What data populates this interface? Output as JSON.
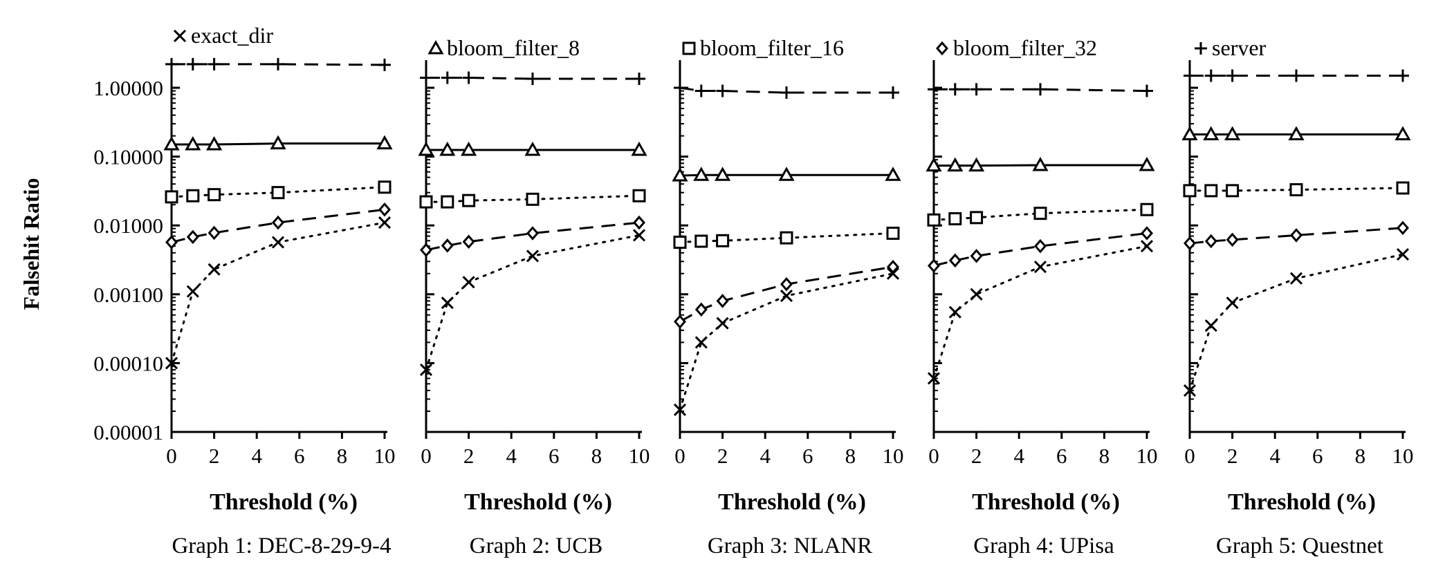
{
  "chart_data": {
    "type": "line",
    "ylabel": "Falsehit Ratio",
    "yscale": "log",
    "ylim": [
      1e-05,
      1.0
    ],
    "yticks": [
      {
        "value": 1.0,
        "label": "1.00000"
      },
      {
        "value": 0.1,
        "label": "0.10000"
      },
      {
        "value": 0.01,
        "label": "0.01000"
      },
      {
        "value": 0.001,
        "label": "0.00100"
      },
      {
        "value": 0.0001,
        "label": "0.00010"
      },
      {
        "value": 1e-05,
        "label": "0.00001"
      }
    ],
    "xlim": [
      0,
      10
    ],
    "xticks": [
      0,
      2,
      4,
      6,
      8,
      10
    ],
    "xlabel": "Threshold (%)",
    "x": [
      0,
      1,
      2,
      5,
      10
    ],
    "legend": [
      {
        "name": "exact_dir",
        "marker": "x",
        "dash": "dotted"
      },
      {
        "name": "bloom_filter_8",
        "marker": "triangle",
        "dash": "solid"
      },
      {
        "name": "bloom_filter_16",
        "marker": "square",
        "dash": "dotted"
      },
      {
        "name": "bloom_filter_32",
        "marker": "diamond",
        "dash": "dashed"
      },
      {
        "name": "server",
        "marker": "plus",
        "dash": "dashed"
      }
    ],
    "panels": [
      {
        "caption": "Graph 1: DEC-8-29-9-4",
        "series": [
          {
            "name": "exact_dir",
            "values": [
              0.0001,
              0.0011,
              0.0023,
              0.0057,
              0.011
            ]
          },
          {
            "name": "bloom_filter_8",
            "values": [
              0.15,
              0.15,
              0.15,
              0.155,
              0.155
            ]
          },
          {
            "name": "bloom_filter_16",
            "values": [
              0.026,
              0.027,
              0.028,
              0.03,
              0.036
            ]
          },
          {
            "name": "bloom_filter_32",
            "values": [
              0.0057,
              0.0068,
              0.0078,
              0.011,
              0.017
            ]
          },
          {
            "name": "server",
            "values": [
              2.2,
              2.2,
              2.2,
              2.2,
              2.15
            ]
          }
        ]
      },
      {
        "caption": "Graph 2: UCB",
        "series": [
          {
            "name": "exact_dir",
            "values": [
              8e-05,
              0.00075,
              0.0015,
              0.0036,
              0.0072
            ]
          },
          {
            "name": "bloom_filter_8",
            "values": [
              0.125,
              0.125,
              0.125,
              0.125,
              0.125
            ]
          },
          {
            "name": "bloom_filter_16",
            "values": [
              0.022,
              0.022,
              0.023,
              0.024,
              0.027
            ]
          },
          {
            "name": "bloom_filter_32",
            "values": [
              0.0044,
              0.0051,
              0.0058,
              0.0077,
              0.011
            ]
          },
          {
            "name": "server",
            "values": [
              1.4,
              1.4,
              1.4,
              1.35,
              1.35
            ]
          }
        ]
      },
      {
        "caption": "Graph 3: NLANR",
        "series": [
          {
            "name": "exact_dir",
            "values": [
              2.1e-05,
              0.0002,
              0.00038,
              0.00095,
              0.002
            ]
          },
          {
            "name": "bloom_filter_8",
            "values": [
              0.053,
              0.054,
              0.054,
              0.054,
              0.054
            ]
          },
          {
            "name": "bloom_filter_16",
            "values": [
              0.0057,
              0.0059,
              0.006,
              0.0066,
              0.0077
            ]
          },
          {
            "name": "bloom_filter_32",
            "values": [
              0.0004,
              0.0006,
              0.0008,
              0.0014,
              0.0025
            ]
          },
          {
            "name": "server",
            "values": [
              1.0,
              0.9,
              0.9,
              0.85,
              0.85
            ]
          }
        ]
      },
      {
        "caption": "Graph 4: UPisa",
        "series": [
          {
            "name": "exact_dir",
            "values": [
              6e-05,
              0.00055,
              0.001,
              0.0025,
              0.005
            ]
          },
          {
            "name": "bloom_filter_8",
            "values": [
              0.074,
              0.074,
              0.074,
              0.075,
              0.075
            ]
          },
          {
            "name": "bloom_filter_16",
            "values": [
              0.012,
              0.0125,
              0.013,
              0.015,
              0.017
            ]
          },
          {
            "name": "bloom_filter_32",
            "values": [
              0.0026,
              0.0031,
              0.0036,
              0.005,
              0.0077
            ]
          },
          {
            "name": "server",
            "values": [
              0.95,
              0.95,
              0.95,
              0.95,
              0.9
            ]
          }
        ]
      },
      {
        "caption": "Graph 5: Questnet",
        "series": [
          {
            "name": "exact_dir",
            "values": [
              4e-05,
              0.00035,
              0.00075,
              0.0017,
              0.0038
            ]
          },
          {
            "name": "bloom_filter_8",
            "values": [
              0.21,
              0.21,
              0.21,
              0.21,
              0.21
            ]
          },
          {
            "name": "bloom_filter_16",
            "values": [
              0.032,
              0.032,
              0.032,
              0.033,
              0.035
            ]
          },
          {
            "name": "bloom_filter_32",
            "values": [
              0.0055,
              0.0059,
              0.0062,
              0.0072,
              0.0092
            ]
          },
          {
            "name": "server",
            "values": [
              1.5,
              1.5,
              1.5,
              1.5,
              1.5
            ]
          }
        ]
      }
    ]
  }
}
